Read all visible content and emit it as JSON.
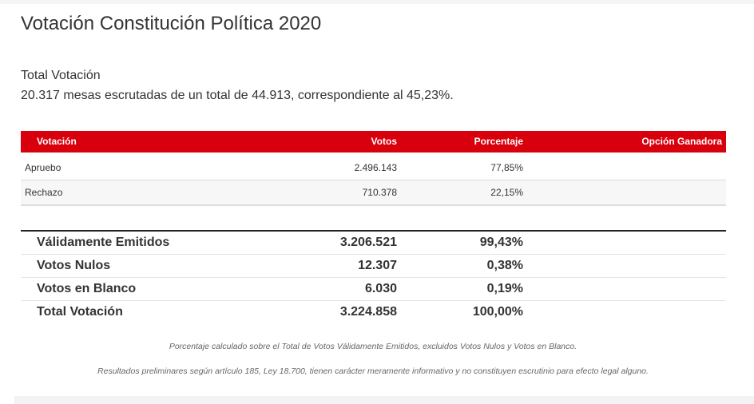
{
  "title": "Votación Constitución Política 2020",
  "summary": {
    "label": "Total Votación",
    "text": "20.317 mesas escrutadas de un total de 44.913, correspondiente al 45,23%."
  },
  "table": {
    "headers": [
      "Votación",
      "Votos",
      "Porcentaje",
      "Opción Ganadora"
    ],
    "rows": [
      {
        "option": "Apruebo",
        "votes": "2.496.143",
        "percent": "77,85%"
      },
      {
        "option": "Rechazo",
        "votes": "710.378",
        "percent": "22,15%"
      }
    ]
  },
  "totals": [
    {
      "label": "Válidamente Emitidos",
      "votes": "3.206.521",
      "percent": "99,43%"
    },
    {
      "label": "Votos Nulos",
      "votes": "12.307",
      "percent": "0,38%"
    },
    {
      "label": "Votos en Blanco",
      "votes": "6.030",
      "percent": "0,19%"
    },
    {
      "label": "Total Votación",
      "votes": "3.224.858",
      "percent": "100,00%"
    }
  ],
  "notes": [
    "Porcentaje calculado sobre el Total de Votos Válidamente Emitidos, excluidos Votos Nulos y Votos en Blanco.",
    "Resultados preliminares según artículo 185, Ley 18.700, tienen carácter meramente informativo y no constituyen escrutinio para efecto legal alguno."
  ],
  "colors": {
    "header": "#d9000d"
  }
}
